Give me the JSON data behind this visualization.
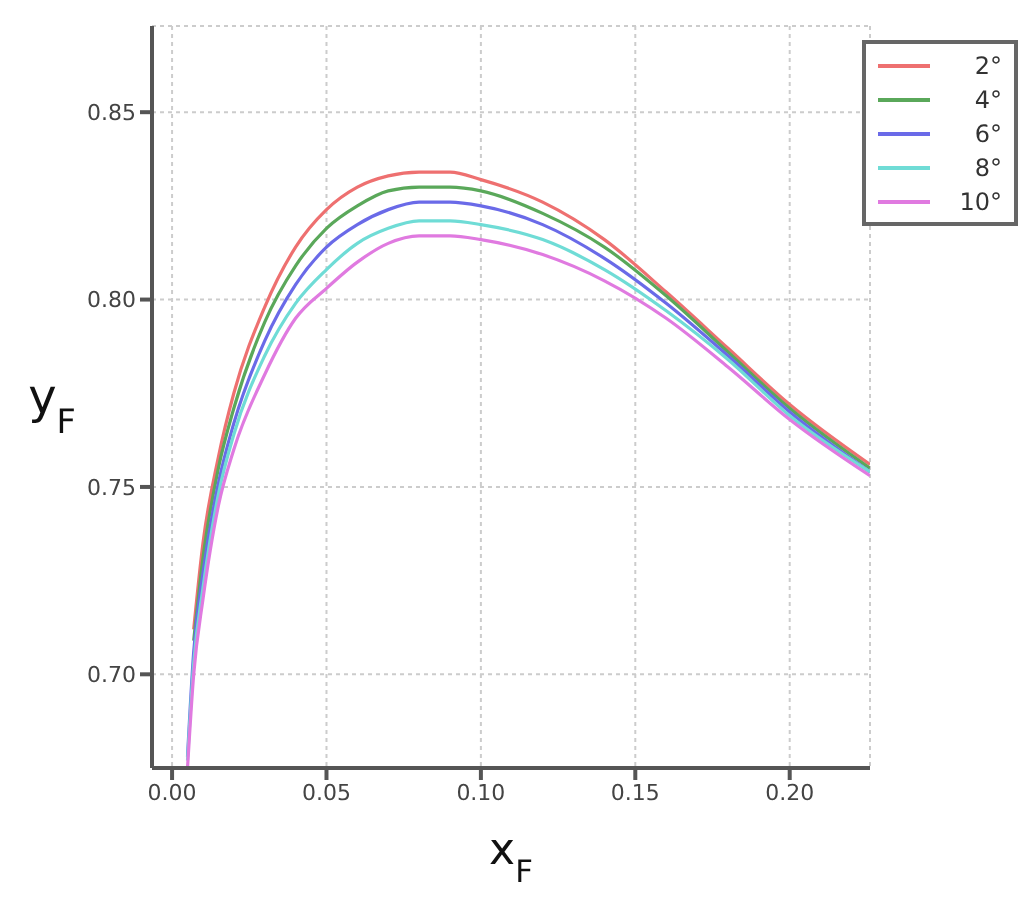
{
  "chart_data": {
    "type": "line",
    "xlabel": "x$_{F}$",
    "ylabel": "y$_{F}$",
    "x": [
      0.005,
      0.007,
      0.01,
      0.015,
      0.02,
      0.03,
      0.04,
      0.05,
      0.06,
      0.07,
      0.08,
      0.09,
      0.1,
      0.12,
      0.14,
      0.16,
      0.18,
      0.2,
      0.226
    ],
    "series": [
      {
        "name": "2°",
        "color": "#ee7070",
        "values": [
          null,
          0.712,
          0.735,
          0.758,
          0.775,
          0.798,
          0.814,
          0.824,
          0.83,
          0.833,
          0.834,
          0.834,
          0.832,
          0.826,
          0.816,
          0.802,
          0.787,
          0.772,
          0.756
        ]
      },
      {
        "name": "4°",
        "color": "#5aa85a",
        "values": [
          null,
          0.709,
          0.731,
          0.755,
          0.771,
          0.794,
          0.809,
          0.819,
          0.825,
          0.829,
          0.83,
          0.83,
          0.829,
          0.823,
          0.814,
          0.801,
          0.786,
          0.771,
          0.755
        ]
      },
      {
        "name": "6°",
        "color": "#6a6ae8",
        "values": [
          0.678,
          0.706,
          0.727,
          0.751,
          0.767,
          0.789,
          0.804,
          0.814,
          0.82,
          0.824,
          0.826,
          0.826,
          0.825,
          0.82,
          0.811,
          0.799,
          0.785,
          0.77,
          0.754
        ]
      },
      {
        "name": "8°",
        "color": "#6fdcd6",
        "values": [
          0.677,
          0.703,
          0.723,
          0.748,
          0.764,
          0.785,
          0.799,
          0.808,
          0.815,
          0.819,
          0.821,
          0.821,
          0.82,
          0.816,
          0.808,
          0.797,
          0.784,
          0.769,
          0.754
        ]
      },
      {
        "name": "10°",
        "color": "#e07ae0",
        "values": [
          0.675,
          0.7,
          0.72,
          0.745,
          0.76,
          0.78,
          0.795,
          0.803,
          0.81,
          0.815,
          0.817,
          0.817,
          0.816,
          0.812,
          0.805,
          0.795,
          0.782,
          0.768,
          0.753
        ]
      }
    ],
    "xlim": [
      -0.0065,
      0.226
    ],
    "ylim": [
      0.675,
      0.873
    ],
    "xticks": [
      {
        "value": 0,
        "label": "0.00"
      },
      {
        "value": 0.05,
        "label": "0.05"
      },
      {
        "value": 0.1,
        "label": "0.10"
      },
      {
        "value": 0.15,
        "label": "0.15"
      },
      {
        "value": 0.2,
        "label": "0.20"
      }
    ],
    "yticks": [
      {
        "value": 0.7,
        "label": "0.70"
      },
      {
        "value": 0.75,
        "label": "0.75"
      },
      {
        "value": 0.8,
        "label": "0.80"
      },
      {
        "value": 0.85,
        "label": "0.85"
      }
    ],
    "grid": true,
    "legend": "top right"
  }
}
